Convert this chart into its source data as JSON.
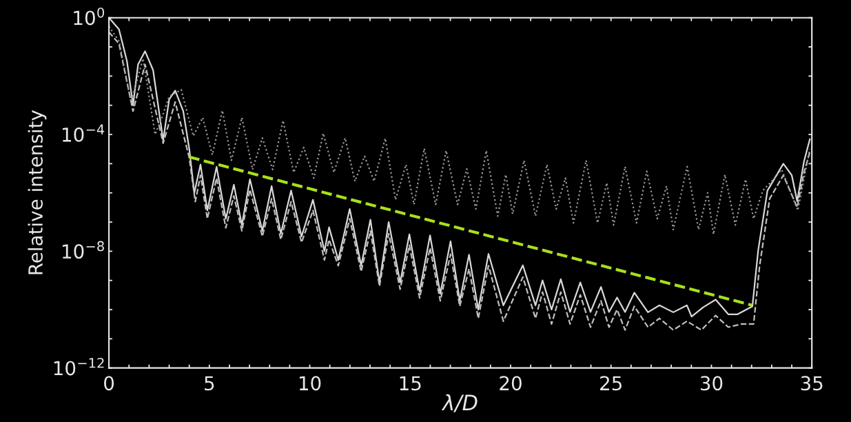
{
  "chart_data": {
    "type": "line",
    "xlabel": "λ/D",
    "ylabel": "Relative intensity",
    "log": "y",
    "xlim": [
      0,
      35
    ],
    "ylim": [
      1e-12,
      1
    ],
    "xticks": [
      0,
      {
        "value": 1,
        "label": null
      },
      {
        "value": 2,
        "label": null
      },
      {
        "value": 3,
        "label": null
      },
      {
        "value": 4,
        "label": null
      },
      5,
      {
        "value": 6,
        "label": null
      },
      {
        "value": 7,
        "label": null
      },
      {
        "value": 8,
        "label": null
      },
      {
        "value": 9,
        "label": null
      },
      10,
      {
        "value": 11,
        "label": null
      },
      {
        "value": 12,
        "label": null
      },
      {
        "value": 13,
        "label": null
      },
      {
        "value": 14,
        "label": null
      },
      15,
      {
        "value": 16,
        "label": null
      },
      {
        "value": 17,
        "label": null
      },
      {
        "value": 18,
        "label": null
      },
      {
        "value": 19,
        "label": null
      },
      20,
      {
        "value": 21,
        "label": null
      },
      {
        "value": 22,
        "label": null
      },
      {
        "value": 23,
        "label": null
      },
      {
        "value": 24,
        "label": null
      },
      25,
      {
        "value": 26,
        "label": null
      },
      {
        "value": 27,
        "label": null
      },
      {
        "value": 28,
        "label": null
      },
      {
        "value": 29,
        "label": null
      },
      30,
      {
        "value": 31,
        "label": null
      },
      {
        "value": 32,
        "label": null
      },
      {
        "value": 33,
        "label": null
      },
      {
        "value": 34,
        "label": null
      },
      35
    ],
    "yticks": [
      {
        "value": 1e-12,
        "label": "10$^{−12}$"
      },
      {
        "value": 1e-11,
        "label": null
      },
      {
        "value": 1e-10,
        "label": null
      },
      {
        "value": 1e-09,
        "label": null
      },
      {
        "value": 1e-08,
        "label": "10$^{−8}$"
      },
      {
        "value": 1e-07,
        "label": null
      },
      {
        "value": 1e-06,
        "label": null
      },
      {
        "value": 1e-05,
        "label": null
      },
      {
        "value": 0.0001,
        "label": "10$^{−4}$"
      },
      {
        "value": 0.001,
        "label": null
      },
      {
        "value": 0.01,
        "label": null
      },
      {
        "value": 0.1,
        "label": null
      },
      {
        "value": 1,
        "label": "10$^{0}$"
      }
    ],
    "grid": false,
    "legend": false,
    "series": [
      {
        "color": "#d9d9d9",
        "line_style": "solid",
        "x": [
          0,
          0.5,
          0.9,
          1.2,
          1.45,
          1.8,
          2.2,
          2.7,
          3.0,
          3.3,
          3.7,
          4.0,
          4.25,
          4.56,
          4.9,
          5.36,
          5.82,
          6.22,
          6.62,
          7.02,
          7.64,
          8.1,
          8.56,
          9.07,
          9.59,
          10.16,
          10.73,
          10.96,
          11.42,
          11.99,
          12.56,
          13.02,
          13.47,
          13.93,
          14.5,
          14.96,
          15.47,
          15.99,
          16.5,
          17.01,
          17.47,
          17.93,
          18.39,
          18.9,
          19.64,
          20.61,
          21.24,
          21.59,
          22.04,
          22.5,
          22.96,
          23.47,
          23.98,
          24.5,
          24.9,
          25.3,
          25.7,
          26.16,
          26.84,
          27.41,
          28.1,
          28.78,
          29.01,
          29.59,
          30.21,
          30.84,
          31.3,
          32.04,
          32.33,
          32.79,
          33.58,
          34.0,
          34.27,
          34.61,
          34.9
        ],
        "values": [
          1,
          0.4,
          0.032,
          0.001,
          0.025,
          0.071,
          0.016,
          6.3e-05,
          0.0016,
          0.0032,
          0.00063,
          3.2e-05,
          1e-06,
          9.3e-06,
          2.5e-07,
          7.8e-06,
          1.3e-07,
          1.9e-06,
          7.9e-08,
          2.9e-06,
          5e-08,
          1.7e-06,
          4e-08,
          1.2e-06,
          3.2e-08,
          5.8e-07,
          1e-08,
          6.6e-08,
          5e-09,
          2.8e-07,
          3.2e-09,
          1.2e-07,
          8.5e-10,
          1e-07,
          8.5e-10,
          3.8e-08,
          4.2e-10,
          3.5e-08,
          3.5e-10,
          2.2e-08,
          2e-10,
          7.6e-09,
          1e-10,
          8.1e-09,
          1.4e-10,
          3.3e-09,
          1.4e-10,
          1e-09,
          1e-10,
          1.1e-09,
          8.3e-11,
          8.5e-10,
          8.3e-11,
          6e-10,
          8.3e-11,
          2.6e-10,
          8.3e-11,
          3.8e-10,
          8.1e-11,
          1.4e-10,
          8.1e-11,
          1.4e-10,
          5.8e-11,
          1.2e-10,
          2.2e-10,
          6.9e-11,
          6.9e-11,
          1.3e-10,
          1.1e-08,
          1.2e-06,
          1e-05,
          4e-06,
          5.2e-07,
          1.2e-05,
          6.9e-05
        ]
      },
      {
        "color": "#bfbfbf",
        "line_style": "dashed",
        "x": [
          0,
          0.5,
          1.2,
          1.8,
          2.7,
          3.3,
          4.0,
          4.3,
          4.56,
          4.9,
          5.36,
          5.82,
          6.22,
          6.62,
          7.02,
          7.64,
          8.1,
          8.56,
          9.07,
          9.59,
          10.16,
          10.73,
          10.96,
          11.42,
          11.99,
          12.56,
          13.02,
          13.47,
          13.93,
          14.5,
          14.96,
          15.47,
          15.99,
          16.5,
          17.01,
          17.47,
          17.93,
          18.39,
          18.9,
          19.64,
          20.61,
          21.24,
          21.59,
          22.04,
          22.5,
          22.96,
          23.47,
          23.98,
          24.5,
          24.9,
          25.3,
          25.7,
          26.16,
          26.84,
          27.41,
          28.1,
          28.78,
          29.5,
          30.21,
          30.84,
          31.5,
          32.1,
          32.4,
          32.9,
          33.58,
          34.27,
          34.61,
          34.9
        ],
        "values": [
          0.32,
          0.13,
          0.00063,
          0.025,
          5e-05,
          0.0013,
          1.6e-05,
          5e-07,
          4e-06,
          1.3e-07,
          3.2e-06,
          6.3e-08,
          7.9e-07,
          5e-08,
          1.3e-06,
          3.2e-08,
          6.3e-07,
          2.5e-08,
          5e-07,
          2e-08,
          2.5e-07,
          5e-09,
          2.5e-08,
          3.2e-09,
          1.3e-07,
          2e-09,
          5e-08,
          6.3e-10,
          4e-08,
          5e-10,
          1.6e-08,
          2.5e-10,
          1.3e-08,
          2e-10,
          7.9e-09,
          1.3e-10,
          2.5e-09,
          5e-11,
          3.2e-09,
          4e-11,
          1.3e-09,
          5e-11,
          4e-10,
          3.2e-11,
          4e-10,
          3.2e-11,
          3.2e-10,
          2.5e-11,
          2e-10,
          2.5e-11,
          1e-10,
          2e-11,
          1.3e-10,
          2.5e-11,
          5e-11,
          2e-11,
          4e-11,
          2e-11,
          6.3e-11,
          2.5e-11,
          3.2e-11,
          3.2e-11,
          3.2e-09,
          6.3e-07,
          4e-06,
          3.2e-07,
          5e-06,
          2.5e-05
        ]
      },
      {
        "color": "#9a9a9a",
        "line_style": "dotted",
        "x": [
          0,
          0.5,
          1.1,
          1.7,
          2.3,
          2.6,
          3.0,
          3.6,
          4.2,
          4.67,
          5.15,
          5.65,
          6.1,
          6.62,
          7.15,
          7.64,
          8.15,
          8.67,
          9.2,
          9.7,
          10.2,
          10.67,
          11.2,
          11.76,
          12.25,
          12.73,
          13.2,
          13.76,
          14.27,
          14.79,
          15.19,
          15.7,
          16.27,
          16.79,
          17.36,
          17.82,
          18.27,
          18.79,
          19.36,
          19.76,
          20.1,
          20.67,
          21.24,
          21.81,
          22.27,
          22.73,
          23.13,
          23.76,
          24.33,
          24.79,
          25.13,
          25.7,
          26.27,
          26.78,
          27.3,
          27.76,
          28.1,
          28.79,
          29.36,
          29.81,
          30.1,
          30.67,
          31.19,
          31.7,
          32.1,
          32.56,
          33.0,
          33.5,
          34.3,
          34.9
        ],
        "values": [
          0.5,
          0.16,
          0.0013,
          0.04,
          0.0001,
          0.00032,
          0.002,
          0.0034,
          8.9e-05,
          0.00038,
          2e-05,
          0.00066,
          1.3e-05,
          0.00038,
          6.3e-06,
          7.6e-05,
          6.3e-06,
          0.0003,
          5e-06,
          3.6e-05,
          3.2e-06,
          0.00011,
          5e-06,
          7.6e-05,
          2.5e-06,
          1.8e-05,
          2.5e-06,
          7.4e-05,
          5.8e-07,
          9.3e-06,
          4e-07,
          3.3e-05,
          4e-07,
          2.8e-05,
          4e-07,
          6.6e-06,
          2.8e-07,
          2.8e-05,
          1.6e-07,
          4.2e-06,
          1.9e-07,
          1.3e-05,
          1.6e-07,
          9.3e-06,
          2.8e-07,
          3.2e-06,
          9.3e-08,
          1.3e-05,
          9.3e-08,
          2.2e-06,
          7.9e-08,
          7.9e-06,
          9.3e-08,
          5.5e-06,
          1.3e-07,
          1.7e-06,
          5.5e-08,
          7.9e-06,
          5.5e-08,
          1e-06,
          3.8e-08,
          4.2e-06,
          7.9e-08,
          2.9e-06,
          1.3e-07,
          1.2e-06,
          2.5e-06,
          6.3e-06,
          2.5e-07,
          3.2e-05
        ]
      },
      {
        "color": "#a8e01c",
        "line_style": "dashed",
        "x": [
          3.99,
          32.04
        ],
        "values": [
          1.7e-05,
          1.4e-10
        ]
      }
    ]
  }
}
